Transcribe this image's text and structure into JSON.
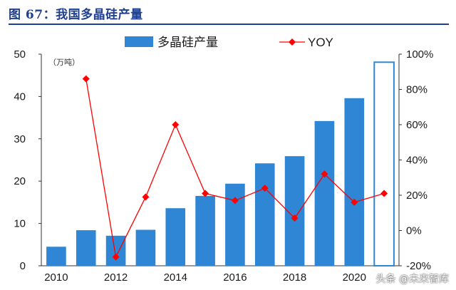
{
  "title": "图 67：我国多晶硅产量",
  "watermark": "头条 @未来智库",
  "chart_data": {
    "type": "bar",
    "title": "图 67：我国多晶硅产量",
    "unit_label": "（万吨）",
    "categories": [
      "2010",
      "2011",
      "2012",
      "2013",
      "2014",
      "2015",
      "2016",
      "2017",
      "2018",
      "2019",
      "2020",
      "2021"
    ],
    "x_tick_labels": [
      "2010",
      "2012",
      "2014",
      "2016",
      "2018",
      "2020"
    ],
    "series": [
      {
        "name": "多晶硅产量",
        "type": "bar",
        "axis": "left",
        "color": "#2e86d4",
        "values": [
          4.5,
          8.4,
          7.1,
          8.5,
          13.6,
          16.5,
          19.4,
          24.2,
          25.9,
          34.2,
          39.6,
          48.1
        ],
        "outlined_last": true
      },
      {
        "name": "YOY",
        "type": "line",
        "axis": "right",
        "color": "#ff0000",
        "values": [
          null,
          0.86,
          -0.15,
          0.19,
          0.6,
          0.21,
          0.17,
          0.24,
          0.07,
          0.32,
          0.16,
          0.21
        ]
      }
    ],
    "y_left": {
      "lim": [
        0,
        50
      ],
      "ticks": [
        "0",
        "10",
        "20",
        "30",
        "40",
        "50"
      ]
    },
    "y_right": {
      "lim": [
        -0.2,
        1.0
      ],
      "ticks": [
        "-20%",
        "0%",
        "20%",
        "40%",
        "60%",
        "80%",
        "100%"
      ]
    },
    "legend_position": "top",
    "grid": false
  }
}
